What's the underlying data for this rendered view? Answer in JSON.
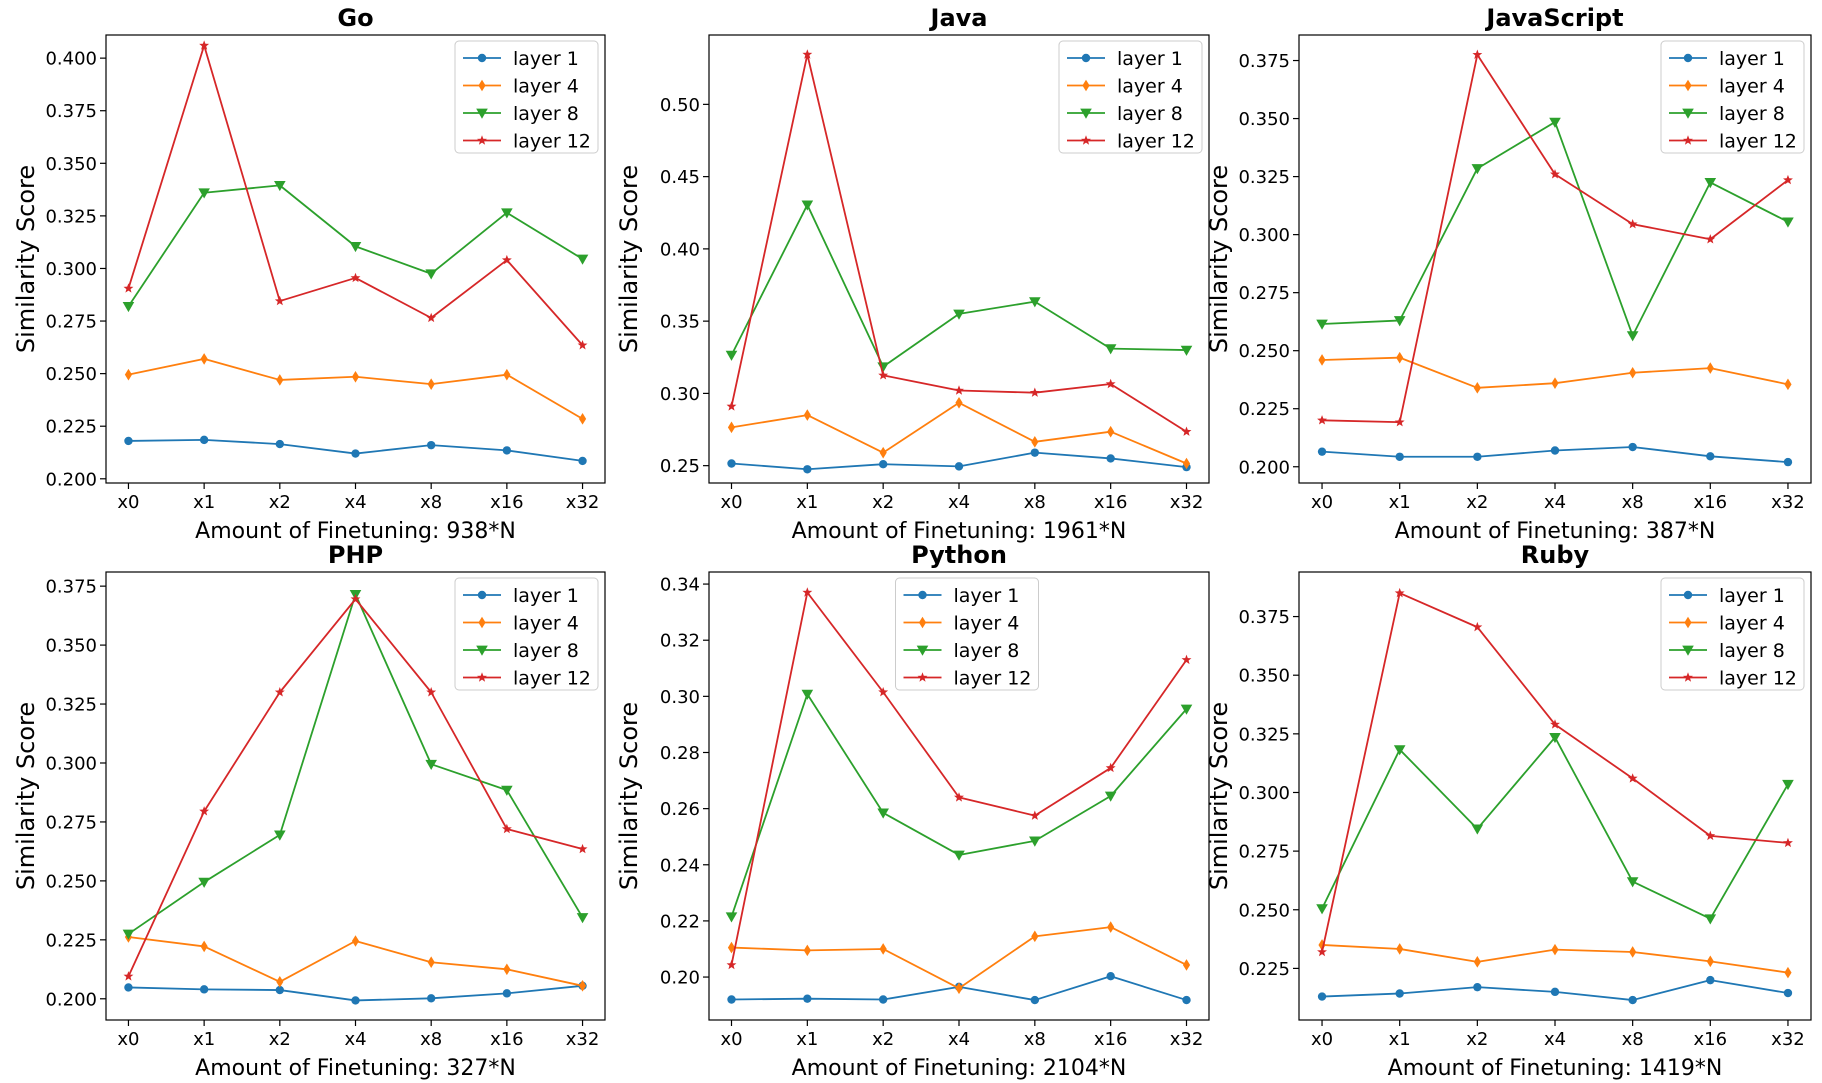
{
  "figure": {
    "categories": [
      "x0",
      "x1",
      "x2",
      "x4",
      "x8",
      "x16",
      "x32"
    ],
    "ylabel": "Similarity Score",
    "series_style": [
      {
        "name": "layer 1",
        "color": "#1f77b4",
        "marker": "circle"
      },
      {
        "name": "layer 4",
        "color": "#ff7f0e",
        "marker": "thin-diamond"
      },
      {
        "name": "layer 8",
        "color": "#2ca02c",
        "marker": "triangle-down"
      },
      {
        "name": "layer 12",
        "color": "#d62728",
        "marker": "star"
      }
    ]
  },
  "chart_data": [
    {
      "type": "line",
      "title": "Go",
      "xlabel": "Amount of Finetuning: 938*N",
      "ylabel": "Similarity Score",
      "categories": [
        "x0",
        "x1",
        "x2",
        "x4",
        "x8",
        "x16",
        "x32"
      ],
      "ylim": [
        0.198,
        0.411
      ],
      "yticks": [
        0.2,
        0.225,
        0.25,
        0.275,
        0.3,
        0.325,
        0.35,
        0.375,
        0.4
      ],
      "ytick_labels": [
        "0.200",
        "0.225",
        "0.250",
        "0.275",
        "0.300",
        "0.325",
        "0.350",
        "0.375",
        "0.400"
      ],
      "legend_position": "top-right",
      "series": [
        {
          "name": "layer 1",
          "values": [
            0.218,
            0.2185,
            0.2165,
            0.212,
            0.216,
            0.2135,
            0.2085
          ]
        },
        {
          "name": "layer 4",
          "values": [
            0.2495,
            0.257,
            0.247,
            0.2485,
            0.245,
            0.2495,
            0.2285
          ]
        },
        {
          "name": "layer 8",
          "values": [
            0.282,
            0.336,
            0.3395,
            0.3105,
            0.2975,
            0.3265,
            0.3045
          ]
        },
        {
          "name": "layer 12",
          "values": [
            0.2905,
            0.406,
            0.2845,
            0.2955,
            0.2765,
            0.304,
            0.2635
          ]
        }
      ]
    },
    {
      "type": "line",
      "title": "Java",
      "xlabel": "Amount of Finetuning: 1961*N",
      "ylabel": "Similarity Score",
      "categories": [
        "x0",
        "x1",
        "x2",
        "x4",
        "x8",
        "x16",
        "x32"
      ],
      "ylim": [
        0.238,
        0.548
      ],
      "yticks": [
        0.25,
        0.3,
        0.35,
        0.4,
        0.45,
        0.5
      ],
      "ytick_labels": [
        "0.25",
        "0.30",
        "0.35",
        "0.40",
        "0.45",
        "0.50"
      ],
      "legend_position": "top-right",
      "series": [
        {
          "name": "layer 1",
          "values": [
            0.2515,
            0.2475,
            0.251,
            0.2495,
            0.259,
            0.255,
            0.249
          ]
        },
        {
          "name": "layer 4",
          "values": [
            0.2765,
            0.285,
            0.259,
            0.2935,
            0.2665,
            0.2735,
            0.2515
          ]
        },
        {
          "name": "layer 8",
          "values": [
            0.3265,
            0.4305,
            0.3185,
            0.355,
            0.3635,
            0.331,
            0.33
          ]
        },
        {
          "name": "layer 12",
          "values": [
            0.291,
            0.5345,
            0.3125,
            0.302,
            0.3005,
            0.3065,
            0.2735
          ]
        }
      ]
    },
    {
      "type": "line",
      "title": "JavaScript",
      "xlabel": "Amount of Finetuning: 387*N",
      "ylabel": "Similarity Score",
      "categories": [
        "x0",
        "x1",
        "x2",
        "x4",
        "x8",
        "x16",
        "x32"
      ],
      "ylim": [
        0.193,
        0.386
      ],
      "yticks": [
        0.2,
        0.225,
        0.25,
        0.275,
        0.3,
        0.325,
        0.35,
        0.375
      ],
      "ytick_labels": [
        "0.200",
        "0.225",
        "0.250",
        "0.275",
        "0.300",
        "0.325",
        "0.350",
        "0.375"
      ],
      "legend_position": "top-right",
      "series": [
        {
          "name": "layer 1",
          "values": [
            0.2065,
            0.2043,
            0.2043,
            0.207,
            0.2085,
            0.2045,
            0.202
          ]
        },
        {
          "name": "layer 4",
          "values": [
            0.246,
            0.247,
            0.234,
            0.236,
            0.2405,
            0.2425,
            0.2355
          ]
        },
        {
          "name": "layer 8",
          "values": [
            0.2615,
            0.263,
            0.3285,
            0.3485,
            0.2565,
            0.3225,
            0.3055
          ]
        },
        {
          "name": "layer 12",
          "values": [
            0.22,
            0.2192,
            0.3775,
            0.326,
            0.3045,
            0.298,
            0.3235
          ]
        }
      ]
    },
    {
      "type": "line",
      "title": "PHP",
      "xlabel": "Amount of Finetuning: 327*N",
      "ylabel": "Similarity Score",
      "categories": [
        "x0",
        "x1",
        "x2",
        "x4",
        "x8",
        "x16",
        "x32"
      ],
      "ylim": [
        0.191,
        0.381
      ],
      "yticks": [
        0.2,
        0.225,
        0.25,
        0.275,
        0.3,
        0.325,
        0.35,
        0.375
      ],
      "ytick_labels": [
        "0.200",
        "0.225",
        "0.250",
        "0.275",
        "0.300",
        "0.325",
        "0.350",
        "0.375"
      ],
      "legend_position": "top-right",
      "series": [
        {
          "name": "layer 1",
          "values": [
            0.2048,
            0.204,
            0.2037,
            0.1993,
            0.2002,
            0.2023,
            0.2055
          ]
        },
        {
          "name": "layer 4",
          "values": [
            0.2262,
            0.2222,
            0.2072,
            0.2245,
            0.2155,
            0.2125,
            0.2055
          ]
        },
        {
          "name": "layer 8",
          "values": [
            0.2275,
            0.2495,
            0.2695,
            0.3715,
            0.2995,
            0.2885,
            0.2345
          ]
        },
        {
          "name": "layer 12",
          "values": [
            0.2095,
            0.2795,
            0.33,
            0.3695,
            0.33,
            0.272,
            0.2635
          ]
        }
      ]
    },
    {
      "type": "line",
      "title": "Python",
      "xlabel": "Amount of Finetuning: 2104*N",
      "ylabel": "Similarity Score",
      "categories": [
        "x0",
        "x1",
        "x2",
        "x4",
        "x8",
        "x16",
        "x32"
      ],
      "ylim": [
        0.1847,
        0.3443
      ],
      "yticks": [
        0.2,
        0.22,
        0.24,
        0.26,
        0.28,
        0.3,
        0.32,
        0.34
      ],
      "ytick_labels": [
        "0.20",
        "0.22",
        "0.24",
        "0.26",
        "0.28",
        "0.30",
        "0.32",
        "0.34"
      ],
      "legend_position": "top-center",
      "series": [
        {
          "name": "layer 1",
          "values": [
            0.192,
            0.1923,
            0.192,
            0.1965,
            0.1918,
            0.2003,
            0.1918
          ]
        },
        {
          "name": "layer 4",
          "values": [
            0.2105,
            0.2095,
            0.21,
            0.196,
            0.2145,
            0.2178,
            0.2043
          ]
        },
        {
          "name": "layer 8",
          "values": [
            0.2215,
            0.3008,
            0.2585,
            0.2435,
            0.2485,
            0.2645,
            0.2955
          ]
        },
        {
          "name": "layer 12",
          "values": [
            0.2043,
            0.337,
            0.3015,
            0.264,
            0.2575,
            0.2745,
            0.313
          ]
        }
      ]
    },
    {
      "type": "line",
      "title": "Ruby",
      "xlabel": "Amount of Finetuning: 1419*N",
      "ylabel": "Similarity Score",
      "categories": [
        "x0",
        "x1",
        "x2",
        "x4",
        "x8",
        "x16",
        "x32"
      ],
      "ylim": [
        0.203,
        0.394
      ],
      "yticks": [
        0.225,
        0.25,
        0.275,
        0.3,
        0.325,
        0.35,
        0.375
      ],
      "ytick_labels": [
        "0.225",
        "0.250",
        "0.275",
        "0.300",
        "0.325",
        "0.350",
        "0.375"
      ],
      "legend_position": "top-right",
      "series": [
        {
          "name": "layer 1",
          "values": [
            0.213,
            0.2143,
            0.217,
            0.215,
            0.2115,
            0.22,
            0.2145
          ]
        },
        {
          "name": "layer 4",
          "values": [
            0.235,
            0.2333,
            0.2278,
            0.233,
            0.232,
            0.228,
            0.2232
          ]
        },
        {
          "name": "layer 8",
          "values": [
            0.2505,
            0.3183,
            0.2845,
            0.3235,
            0.262,
            0.2462,
            0.3035
          ]
        },
        {
          "name": "layer 12",
          "values": [
            0.232,
            0.385,
            0.3705,
            0.329,
            0.306,
            0.2815,
            0.2785
          ]
        }
      ]
    }
  ]
}
